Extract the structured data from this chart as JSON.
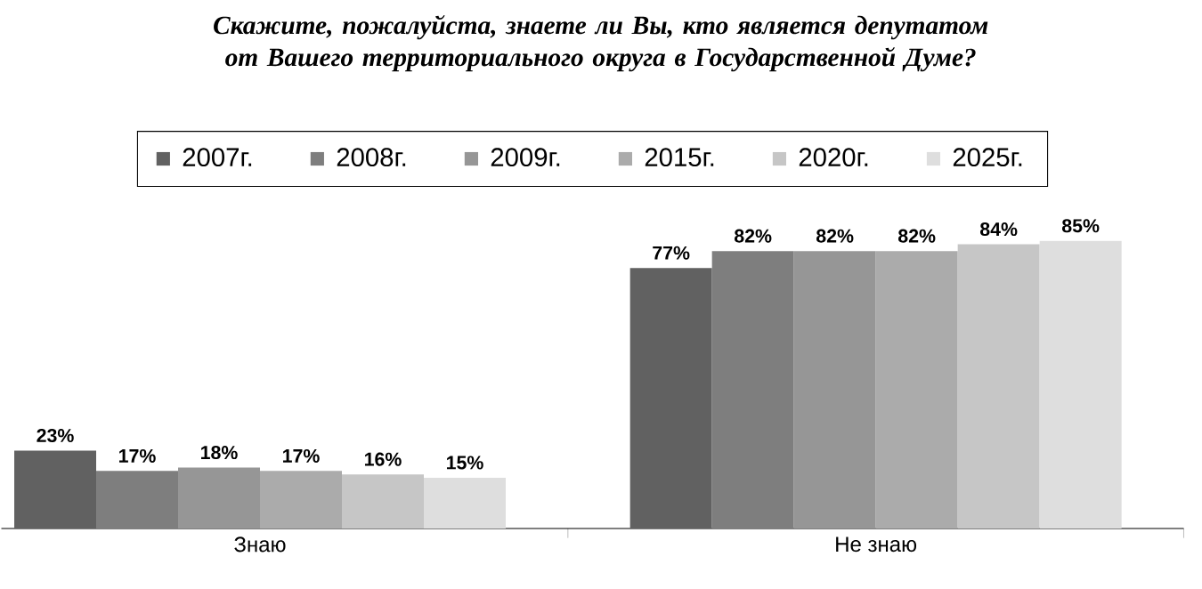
{
  "chart_data": {
    "type": "bar",
    "title": "Скажите, пожалуйста, знаете ли Вы, кто является депутатом от Вашего территориального округа в Государственной Думе?",
    "categories": [
      "Знаю",
      "Не знаю"
    ],
    "series": [
      {
        "name": "2007г.",
        "color": "#616161",
        "values": [
          23,
          77
        ],
        "value_labels": [
          "23%",
          "77%"
        ]
      },
      {
        "name": "2008г.",
        "color": "#7e7e7e",
        "values": [
          17,
          82
        ],
        "value_labels": [
          "17%",
          "82%"
        ]
      },
      {
        "name": "2009г.",
        "color": "#969696",
        "values": [
          18,
          82
        ],
        "value_labels": [
          "18%",
          "82%"
        ]
      },
      {
        "name": "2015г.",
        "color": "#ababab",
        "values": [
          17,
          82
        ],
        "value_labels": [
          "17%",
          "82%"
        ]
      },
      {
        "name": "2020г.",
        "color": "#c6c6c6",
        "values": [
          16,
          84
        ],
        "value_labels": [
          "16%",
          "84%"
        ]
      },
      {
        "name": "2025г.",
        "color": "#dedede",
        "values": [
          15,
          85
        ],
        "value_labels": [
          "15%",
          "85%"
        ]
      }
    ],
    "legend": "top"
  }
}
